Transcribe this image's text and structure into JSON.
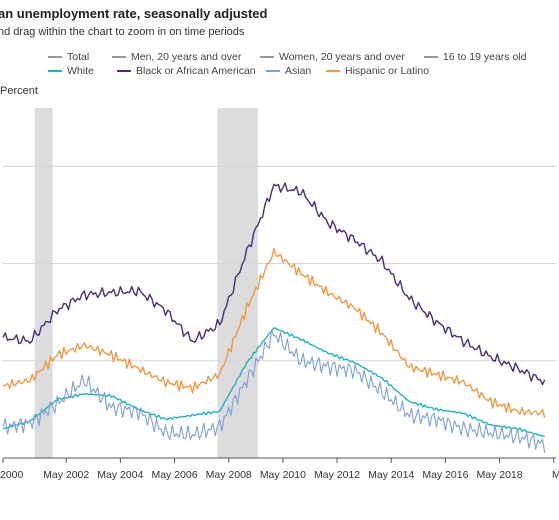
{
  "header": {
    "title": "an unemployment rate, seasonally adjusted",
    "subtitle": "nd drag within the chart to zoom in on time periods"
  },
  "legend": [
    {
      "label": "Total",
      "color": "#999999"
    },
    {
      "label": "Men, 20 years and over",
      "color": "#999999"
    },
    {
      "label": "Women, 20 years and over",
      "color": "#999999"
    },
    {
      "label": "16 to 19 years old",
      "color": "#999999"
    },
    {
      "label": "White",
      "color": "#1fb3c4"
    },
    {
      "label": "Black or African American",
      "color": "#4b2d7a"
    },
    {
      "label": "Asian",
      "color": "#7f9fd6"
    },
    {
      "label": "Hispanic or Latino",
      "color": "#ee9a45"
    }
  ],
  "chart_data": {
    "type": "line",
    "ylabel": "Percent",
    "xlabel": "",
    "title": "",
    "x_tick_labels": [
      "2000",
      "May 2002",
      "May 2004",
      "May 2006",
      "May 2008",
      "May 2010",
      "May 2012",
      "May 2014",
      "May 2016",
      "May 2018",
      "M"
    ],
    "x": [
      "Jan 2000",
      "Jan 2001",
      "Jan 2002",
      "Jan 2003",
      "Jan 2004",
      "Jan 2005",
      "Jan 2006",
      "Jan 2007",
      "Jan 2008",
      "Jan 2009",
      "Jan 2010",
      "Jan 2011",
      "Jan 2012",
      "Jan 2013",
      "Jan 2014",
      "Jan 2015",
      "Jan 2016",
      "Jan 2017",
      "Jan 2018",
      "Jan 2019",
      "Jan 2020"
    ],
    "xlim": [
      "Jan 2000",
      "Jun 2020"
    ],
    "ylim": [
      2,
      20
    ],
    "recessions": [
      [
        "Mar 2001",
        "Nov 2001"
      ],
      [
        "Dec 2007",
        "Jun 2009"
      ]
    ],
    "series": [
      {
        "name": "Black or African American",
        "color": "#4b2d7a",
        "values": [
          8.2,
          8.0,
          9.6,
          10.4,
          10.5,
          10.6,
          9.6,
          8.0,
          8.9,
          12.6,
          16.0,
          15.7,
          14.1,
          13.2,
          12.1,
          10.2,
          9.0,
          8.0,
          7.2,
          6.6,
          5.9
        ]
      },
      {
        "name": "Hispanic or Latino",
        "color": "#ee9a45",
        "values": [
          5.7,
          6.0,
          7.3,
          7.8,
          7.3,
          6.6,
          5.9,
          5.6,
          6.3,
          9.7,
          12.6,
          11.5,
          10.5,
          9.7,
          8.4,
          6.7,
          6.3,
          5.9,
          4.9,
          4.4,
          4.3
        ]
      },
      {
        "name": "White",
        "color": "#1fb3c4",
        "values": [
          3.5,
          3.9,
          5.0,
          5.3,
          5.2,
          4.5,
          4.0,
          4.2,
          4.4,
          6.9,
          8.7,
          8.1,
          7.4,
          6.9,
          6.1,
          4.9,
          4.5,
          4.3,
          3.7,
          3.5,
          3.1
        ]
      },
      {
        "name": "Asian",
        "color": "#7f9fd6",
        "values": [
          3.6,
          3.8,
          4.8,
          6.0,
          4.6,
          4.4,
          3.3,
          3.2,
          3.6,
          6.0,
          8.4,
          7.0,
          6.7,
          6.5,
          5.4,
          4.2,
          4.0,
          3.5,
          3.3,
          3.1,
          2.7
        ]
      }
    ]
  }
}
